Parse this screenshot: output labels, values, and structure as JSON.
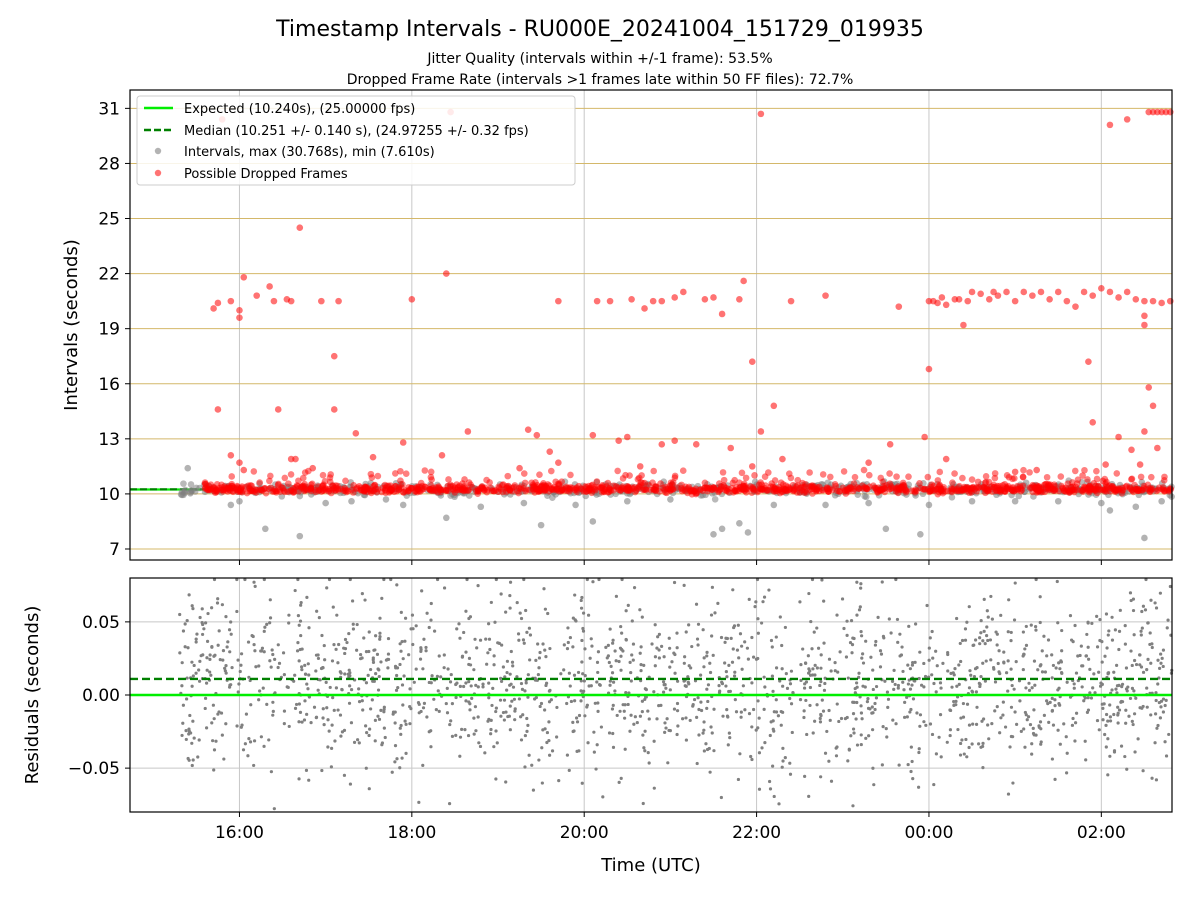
{
  "figure": {
    "title": "Timestamp Intervals - RU000E_20241004_151729_019935",
    "subtitle_1": "Jitter Quality (intervals within +/-1 frame): 53.5%",
    "subtitle_2": "Dropped Frame Rate (intervals >1 frames late within 50 FF files): 72.7%"
  },
  "colors": {
    "expected": "#00ee00",
    "median": "#008000",
    "intervals": "#808080",
    "dropped": "#ff0000",
    "hgrid_top": "#d4b86a",
    "grid": "#c8c8c8"
  },
  "chart_data": [
    {
      "type": "scatter",
      "panel": "top",
      "xlabel": "",
      "ylabel": "Intervals (seconds)",
      "x_unit": "hours since 00:00 UTC on the first day (values above 24 are the following day)",
      "xlim": [
        14.73,
        26.82
      ],
      "ylim": [
        6.4,
        32.0
      ],
      "yticks": [
        7,
        10,
        13,
        16,
        19,
        22,
        25,
        28,
        31
      ],
      "grid": true,
      "legend_position": "upper-left",
      "legend": [
        {
          "label": "Expected (10.240s), (25.00000 fps)",
          "style": "solid-line",
          "color": "#00ee00"
        },
        {
          "label": "Median (10.251 +/- 0.140 s), (24.97255 +/- 0.32 fps)",
          "style": "dashed-line",
          "color": "#008000"
        },
        {
          "label": "Intervals, max (30.768s), min (7.610s)",
          "style": "dot",
          "color": "#808080"
        },
        {
          "label": "Possible Dropped Frames",
          "style": "dot",
          "color": "#ff0000"
        }
      ],
      "series": [
        {
          "name": "Expected (10.240s), (25.00000 fps)",
          "kind": "hline",
          "y": 10.24
        },
        {
          "name": "Median (10.251 +/- 0.140 s), (24.97255 +/- 0.32 fps)",
          "kind": "hline",
          "y": 10.251
        },
        {
          "name": "Intervals, max (30.768s), min (7.610s)",
          "kind": "scatter",
          "x_range": [
            15.3,
            26.82
          ],
          "y_center": 10.25,
          "y_spread": 0.25,
          "points": [
            [
              15.4,
              11.4
            ],
            [
              15.9,
              9.4
            ],
            [
              16.0,
              9.6
            ],
            [
              16.3,
              8.1
            ],
            [
              16.7,
              7.7
            ],
            [
              17.0,
              9.5
            ],
            [
              17.3,
              9.6
            ],
            [
              17.7,
              9.7
            ],
            [
              17.9,
              9.4
            ],
            [
              18.4,
              8.7
            ],
            [
              18.8,
              9.3
            ],
            [
              19.3,
              9.5
            ],
            [
              19.5,
              8.3
            ],
            [
              19.9,
              9.4
            ],
            [
              20.1,
              8.5
            ],
            [
              20.5,
              9.6
            ],
            [
              21.0,
              9.7
            ],
            [
              21.5,
              7.8
            ],
            [
              21.6,
              8.1
            ],
            [
              21.8,
              8.4
            ],
            [
              21.9,
              7.9
            ],
            [
              22.2,
              9.4
            ],
            [
              22.8,
              9.4
            ],
            [
              23.3,
              9.5
            ],
            [
              23.5,
              8.1
            ],
            [
              23.9,
              7.8
            ],
            [
              24.0,
              9.4
            ],
            [
              24.5,
              9.6
            ],
            [
              25.0,
              9.6
            ],
            [
              25.5,
              9.6
            ],
            [
              26.0,
              9.5
            ],
            [
              26.1,
              9.1
            ],
            [
              26.4,
              9.3
            ],
            [
              26.5,
              7.6
            ],
            [
              26.7,
              9.6
            ]
          ]
        },
        {
          "name": "Possible Dropped Frames",
          "kind": "scatter",
          "baseline_x_range": [
            15.6,
            26.82
          ],
          "baseline_y": 10.25,
          "points": [
            [
              15.7,
              20.1
            ],
            [
              15.75,
              20.4
            ],
            [
              15.8,
              30.4
            ],
            [
              15.9,
              20.5
            ],
            [
              16.0,
              20.0
            ],
            [
              16.0,
              19.6
            ],
            [
              16.05,
              21.8
            ],
            [
              16.2,
              20.8
            ],
            [
              16.35,
              21.3
            ],
            [
              16.4,
              20.5
            ],
            [
              16.55,
              20.6
            ],
            [
              16.6,
              20.5
            ],
            [
              16.7,
              24.5
            ],
            [
              16.95,
              20.5
            ],
            [
              17.15,
              20.5
            ],
            [
              17.1,
              17.5
            ],
            [
              18.0,
              20.6
            ],
            [
              18.4,
              22.0
            ],
            [
              18.45,
              30.8
            ],
            [
              19.7,
              20.5
            ],
            [
              20.15,
              20.5
            ],
            [
              20.3,
              20.5
            ],
            [
              20.55,
              20.6
            ],
            [
              20.7,
              20.1
            ],
            [
              20.8,
              20.5
            ],
            [
              20.9,
              20.5
            ],
            [
              21.05,
              20.7
            ],
            [
              21.15,
              21.0
            ],
            [
              21.4,
              20.6
            ],
            [
              21.5,
              20.7
            ],
            [
              21.6,
              19.8
            ],
            [
              21.8,
              20.6
            ],
            [
              21.85,
              21.6
            ],
            [
              21.95,
              17.2
            ],
            [
              22.05,
              30.7
            ],
            [
              22.4,
              20.5
            ],
            [
              22.8,
              20.8
            ],
            [
              23.65,
              20.2
            ],
            [
              24.0,
              20.5
            ],
            [
              24.05,
              20.5
            ],
            [
              24.1,
              20.4
            ],
            [
              24.15,
              20.7
            ],
            [
              24.2,
              20.3
            ],
            [
              24.3,
              20.6
            ],
            [
              24.35,
              20.6
            ],
            [
              24.4,
              19.2
            ],
            [
              24.45,
              20.5
            ],
            [
              24.5,
              21.0
            ],
            [
              24.6,
              20.9
            ],
            [
              24.7,
              20.6
            ],
            [
              24.75,
              21.0
            ],
            [
              24.8,
              20.8
            ],
            [
              24.9,
              21.0
            ],
            [
              25.0,
              20.5
            ],
            [
              25.1,
              21.0
            ],
            [
              25.2,
              20.8
            ],
            [
              25.3,
              21.0
            ],
            [
              25.4,
              20.6
            ],
            [
              25.5,
              21.0
            ],
            [
              25.6,
              20.5
            ],
            [
              25.7,
              20.2
            ],
            [
              25.8,
              21.0
            ],
            [
              25.9,
              20.8
            ],
            [
              26.0,
              21.2
            ],
            [
              26.1,
              21.0
            ],
            [
              26.2,
              20.7
            ],
            [
              26.3,
              21.0
            ],
            [
              26.4,
              20.6
            ],
            [
              26.5,
              20.5
            ],
            [
              26.6,
              20.5
            ],
            [
              26.7,
              20.4
            ],
            [
              26.8,
              20.5
            ],
            [
              26.1,
              30.1
            ],
            [
              26.3,
              30.4
            ],
            [
              26.55,
              30.8
            ],
            [
              26.6,
              30.8
            ],
            [
              26.65,
              30.8
            ],
            [
              26.7,
              30.8
            ],
            [
              26.75,
              30.8
            ],
            [
              26.8,
              30.8
            ],
            [
              26.5,
              19.2
            ],
            [
              26.5,
              19.7
            ],
            [
              26.55,
              15.8
            ],
            [
              26.6,
              14.8
            ],
            [
              26.65,
              12.5
            ],
            [
              26.45,
              11.6
            ],
            [
              26.5,
              13.4
            ],
            [
              26.35,
              12.4
            ],
            [
              25.85,
              17.2
            ],
            [
              25.9,
              13.9
            ],
            [
              26.05,
              11.6
            ],
            [
              26.2,
              13.1
            ],
            [
              25.0,
              11.2
            ],
            [
              25.25,
              11.3
            ],
            [
              24.2,
              11.9
            ],
            [
              24.0,
              16.8
            ],
            [
              23.95,
              13.1
            ],
            [
              23.3,
              11.7
            ],
            [
              23.55,
              12.7
            ],
            [
              22.2,
              14.8
            ],
            [
              22.3,
              11.9
            ],
            [
              22.05,
              13.4
            ],
            [
              21.95,
              11.5
            ],
            [
              21.7,
              12.5
            ],
            [
              20.4,
              12.9
            ],
            [
              20.5,
              13.1
            ],
            [
              20.65,
              11.5
            ],
            [
              20.9,
              12.7
            ],
            [
              21.05,
              12.9
            ],
            [
              21.3,
              12.7
            ],
            [
              20.1,
              13.2
            ],
            [
              19.35,
              13.5
            ],
            [
              19.45,
              13.2
            ],
            [
              19.6,
              12.3
            ],
            [
              19.7,
              11.7
            ],
            [
              19.25,
              11.4
            ],
            [
              18.35,
              12.1
            ],
            [
              18.65,
              13.4
            ],
            [
              17.9,
              12.8
            ],
            [
              17.55,
              12.0
            ],
            [
              17.35,
              13.3
            ],
            [
              17.1,
              14.6
            ],
            [
              16.45,
              14.6
            ],
            [
              16.6,
              11.9
            ],
            [
              16.65,
              11.9
            ],
            [
              16.85,
              11.4
            ],
            [
              15.75,
              14.6
            ],
            [
              15.9,
              12.1
            ],
            [
              16.0,
              11.7
            ],
            [
              16.05,
              11.3
            ]
          ]
        }
      ]
    },
    {
      "type": "scatter",
      "panel": "bottom",
      "xlabel": "Time (UTC)",
      "ylabel": "Residuals (seconds)",
      "xlim": [
        14.73,
        26.82
      ],
      "ylim": [
        -0.08,
        0.08
      ],
      "yticks": [
        -0.05,
        0.0,
        0.05
      ],
      "ytick_labels": [
        "−0.05",
        "0.00",
        "0.05"
      ],
      "xticks": [
        16,
        18,
        20,
        22,
        24,
        26
      ],
      "xtick_labels": [
        "16:00",
        "18:00",
        "20:00",
        "22:00",
        "00:00",
        "02:00"
      ],
      "grid": true,
      "series": [
        {
          "name": "",
          "kind": "hline",
          "y": 0.0,
          "color": "#00ee00",
          "style": "solid"
        },
        {
          "name": "",
          "kind": "hline",
          "y": 0.011,
          "color": "#008000",
          "style": "dashed"
        },
        {
          "name": "",
          "kind": "scatter",
          "x_range": [
            15.3,
            26.82
          ],
          "y_center": 0.01,
          "y_spread": 0.045,
          "count": 1800,
          "color": "#808080"
        }
      ]
    }
  ]
}
